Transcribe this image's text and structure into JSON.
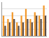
{
  "chart_data": {
    "type": "bar",
    "categories": [
      null,
      null,
      null,
      null,
      null,
      null,
      null,
      null,
      null,
      null
    ],
    "series": [
      {
        "color": "#f39a2e",
        "values": [
          6,
          5,
          7,
          4,
          6,
          8,
          5,
          7,
          6,
          9
        ]
      },
      {
        "color": "#5b4b44",
        "values": [
          3,
          4,
          5,
          3,
          4,
          5,
          4,
          6,
          5,
          6
        ]
      }
    ],
    "ylim": [
      0,
      10
    ],
    "yticks": [
      0,
      2,
      4,
      6,
      8,
      10
    ],
    "grid": true,
    "tick_labels": false
  }
}
